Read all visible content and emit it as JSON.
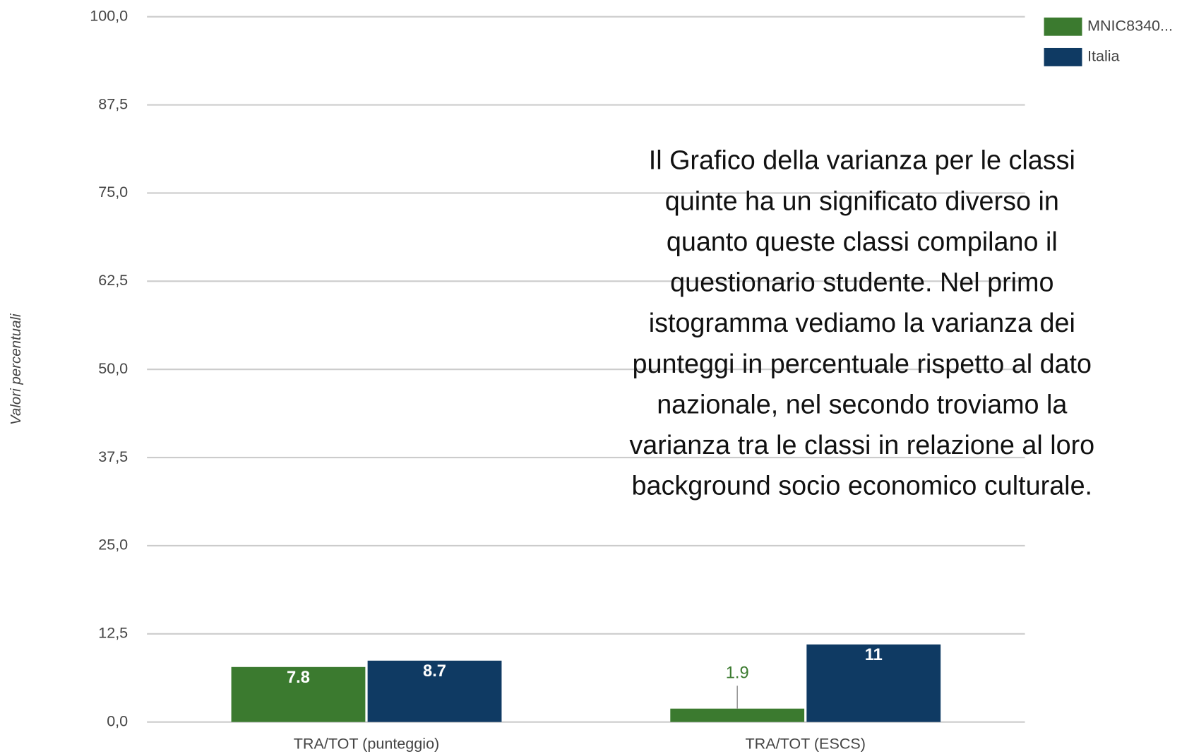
{
  "chart_data": {
    "type": "bar",
    "y_axis_label": "Valori percentuali",
    "categories": [
      "TRA/TOT (punteggio)",
      "TRA/TOT (ESCS)"
    ],
    "series": [
      {
        "name": "MNIC8340...",
        "color": "#3b7a2f",
        "values": [
          7.8,
          1.9
        ]
      },
      {
        "name": "Italia",
        "color": "#0f3a63",
        "values": [
          8.7,
          11
        ]
      }
    ],
    "ylim": [
      0,
      100
    ],
    "yticks": [
      {
        "value": 0,
        "label": "0,0"
      },
      {
        "value": 12.5,
        "label": "12,5"
      },
      {
        "value": 25,
        "label": "25,0"
      },
      {
        "value": 37.5,
        "label": "37,5"
      },
      {
        "value": 50,
        "label": "50,0"
      },
      {
        "value": 62.5,
        "label": "62,5"
      },
      {
        "value": 75,
        "label": "75,0"
      },
      {
        "value": 87.5,
        "label": "87,5"
      },
      {
        "value": 100,
        "label": "100,0"
      }
    ],
    "grid": true,
    "legend": "top-right",
    "annotation": [
      "Il Grafico della varianza per le classi",
      "quinte ha un significato diverso in",
      "quanto queste classi compilano il",
      "questionario studente. Nel primo",
      "istogramma vediamo la varianza dei",
      "punteggi in percentuale rispetto al dato",
      "nazionale, nel secondo troviamo la",
      "varianza tra le classi in relazione al loro",
      "background socio economico culturale."
    ]
  }
}
